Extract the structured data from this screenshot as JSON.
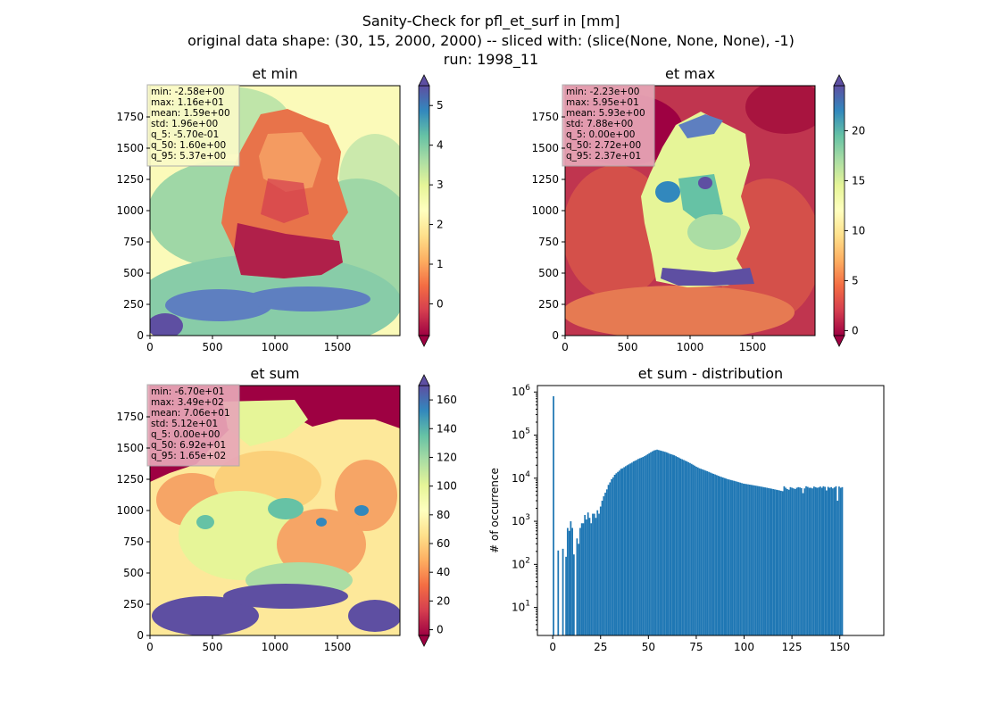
{
  "figure": {
    "title_lines": [
      "Sanity-Check for pfl_et_surf in [mm]",
      "original data shape: (30, 15, 2000, 2000) -- sliced with: (slice(None, None, None), -1)",
      "run: 1998_11"
    ]
  },
  "chart_data": [
    {
      "type": "heatmap",
      "title": "et min",
      "xlim": [
        0,
        2000
      ],
      "ylim": [
        0,
        2000
      ],
      "x_ticks": [
        0,
        500,
        1000,
        1500
      ],
      "y_ticks": [
        0,
        250,
        500,
        750,
        1000,
        1250,
        1500,
        1750
      ],
      "colorbar": {
        "cmap": "Spectral",
        "vmin": -0.8,
        "vmax": 5.5,
        "ticks": [
          0,
          1,
          2,
          3,
          4,
          5
        ],
        "extend": "both"
      },
      "stats_box_color": "#fafac8",
      "stats": [
        "min: -2.58e+00",
        "max: 1.16e+01",
        "mean: 1.59e+00",
        "std: 1.96e+00",
        "q_5: -5.70e-01",
        "q_50: 1.60e+00",
        "q_95: 5.37e+00"
      ]
    },
    {
      "type": "heatmap",
      "title": "et max",
      "xlim": [
        0,
        2000
      ],
      "ylim": [
        0,
        2000
      ],
      "x_ticks": [
        0,
        500,
        1000,
        1500
      ],
      "y_ticks": [
        0,
        250,
        500,
        750,
        1000,
        1250,
        1500,
        1750
      ],
      "colorbar": {
        "cmap": "Spectral",
        "vmin": -0.5,
        "vmax": 24.5,
        "ticks": [
          0,
          5,
          10,
          15,
          20
        ],
        "extend": "both"
      },
      "stats_box_color": "#e8a7b8",
      "stats": [
        "min: -2.23e+00",
        "max: 5.95e+01",
        "mean: 5.93e+00",
        "std: 7.88e+00",
        "q_5: 0.00e+00",
        "q_50: 2.72e+00",
        "q_95: 2.37e+01"
      ]
    },
    {
      "type": "heatmap",
      "title": "et sum",
      "xlim": [
        0,
        2000
      ],
      "ylim": [
        0,
        2000
      ],
      "x_ticks": [
        0,
        500,
        1000,
        1500
      ],
      "y_ticks": [
        0,
        250,
        500,
        750,
        1000,
        1250,
        1500,
        1750
      ],
      "colorbar": {
        "cmap": "Spectral",
        "vmin": -4,
        "vmax": 170,
        "ticks": [
          0,
          20,
          40,
          60,
          80,
          100,
          120,
          140,
          160
        ],
        "extend": "both"
      },
      "stats_box_color": "#e8a7b8",
      "stats": [
        "min: -6.70e+01",
        "max: 3.49e+02",
        "mean: 7.06e+01",
        "std: 5.12e+01",
        "q_5: 0.00e+00",
        "q_50: 6.92e+01",
        "q_95: 1.65e+02"
      ]
    },
    {
      "type": "bar",
      "title": "et sum - distribution",
      "ylabel": "# of occurrence",
      "yscale": "log",
      "xlim": [
        -8,
        173
      ],
      "ylim_log10": [
        0.35,
        6.15
      ],
      "x_ticks": [
        0,
        25,
        50,
        75,
        100,
        125,
        150
      ],
      "y_ticks": [
        {
          "value": 1,
          "base": "10",
          "exp": "1"
        },
        {
          "value": 2,
          "base": "10",
          "exp": "2"
        },
        {
          "value": 3,
          "base": "10",
          "exp": "3"
        },
        {
          "value": 4,
          "base": "10",
          "exp": "4"
        },
        {
          "value": 5,
          "base": "10",
          "exp": "5"
        },
        {
          "value": 6,
          "base": "10",
          "exp": "6"
        }
      ],
      "bar_color": "#1f77b4",
      "bin_start": 0,
      "bin_width": 0.82,
      "counts": [
        800000,
        0,
        0,
        210,
        0,
        0,
        230,
        0,
        150,
        700,
        600,
        1000,
        700,
        170,
        0,
        400,
        300,
        700,
        900,
        900,
        1400,
        1100,
        1600,
        1200,
        900,
        1500,
        1500,
        1200,
        1800,
        1500,
        2200,
        3000,
        3800,
        4600,
        5500,
        7000,
        8000,
        9500,
        10500,
        12000,
        13000,
        14000,
        15000,
        16500,
        17000,
        18000,
        19000,
        20000,
        21000,
        22000,
        23000,
        24500,
        25500,
        26500,
        28000,
        29000,
        30000,
        31000,
        32500,
        34000,
        36000,
        38000,
        40000,
        42000,
        44000,
        45000,
        46000,
        45000,
        44000,
        43000,
        42000,
        41000,
        40000,
        38500,
        37000,
        36000,
        35000,
        34000,
        32500,
        31000,
        30000,
        28500,
        27500,
        26500,
        25500,
        24500,
        23500,
        22500,
        21500,
        20500,
        19500,
        18500,
        17800,
        17000,
        16500,
        16000,
        15500,
        15000,
        14500,
        14000,
        13500,
        13000,
        12600,
        12200,
        11800,
        11400,
        11000,
        10700,
        10400,
        10100,
        9800,
        9500,
        9300,
        9100,
        8900,
        8700,
        8500,
        8300,
        8100,
        7900,
        7700,
        7500,
        7400,
        7300,
        7200,
        7100,
        7000,
        6900,
        6800,
        6700,
        6600,
        6500,
        6400,
        6300,
        6200,
        6100,
        6000,
        5900,
        5800,
        5700,
        5600,
        5500,
        5400,
        5300,
        5200,
        5100,
        5000,
        6500,
        6000,
        5600,
        5400,
        6200,
        6000,
        5800,
        5600,
        6000,
        6200,
        6100,
        5900,
        4500,
        5800,
        6500,
        6300,
        6000,
        6000,
        5800,
        6400,
        6200,
        6000,
        6100,
        6400,
        6000,
        6500,
        6300,
        5200,
        6300,
        6000,
        6200,
        5800,
        6100,
        6500,
        3000,
        6400,
        6000,
        6200
      ]
    }
  ]
}
